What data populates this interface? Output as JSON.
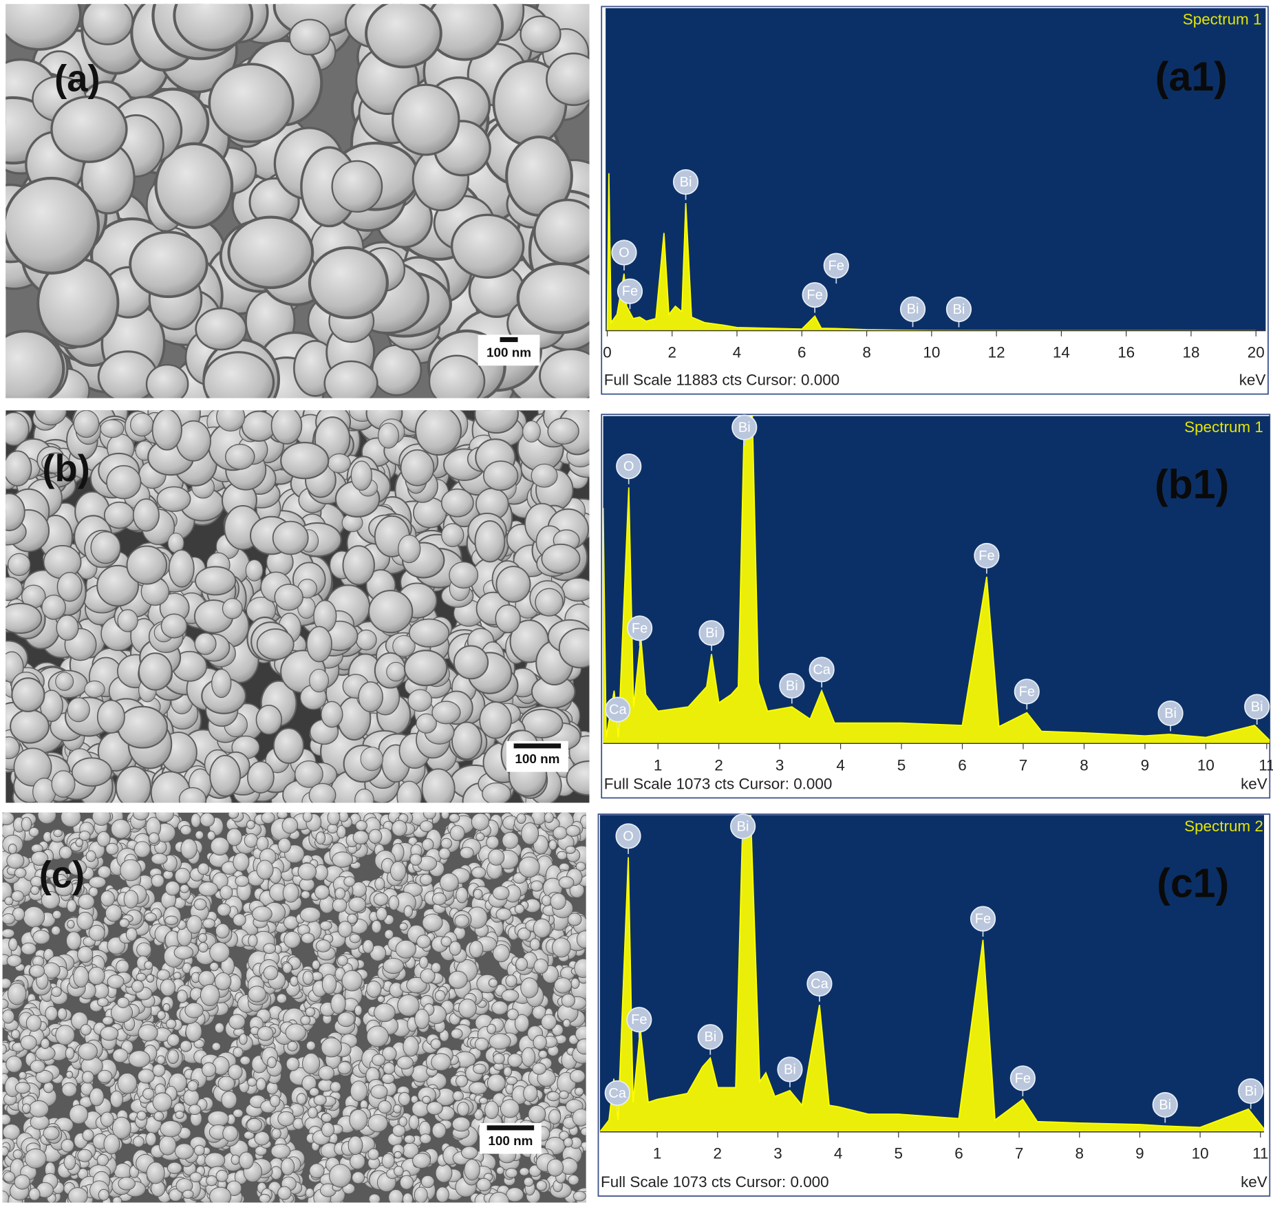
{
  "panels": [
    {
      "label": "(a)",
      "scale_bar": "100 nm"
    },
    {
      "label": "(b)",
      "scale_bar": "100 nm"
    },
    {
      "label": "(c)",
      "scale_bar": "100 nm"
    }
  ],
  "chart_data": [
    {
      "type": "line",
      "title": "Spectrum 1",
      "panel_label": "(a1)",
      "footer": "Full Scale 11883 cts Cursor: 0.000",
      "x_label": "keV",
      "color": "#ffff00",
      "x": [
        0,
        0.05,
        0.12,
        0.3,
        0.52,
        0.6,
        0.8,
        1.0,
        1.2,
        1.5,
        1.75,
        1.9,
        2.1,
        2.3,
        2.42,
        2.6,
        3.0,
        3.6,
        4.0,
        5,
        6,
        6.4,
        6.6,
        7.06,
        8,
        9,
        10,
        20
      ],
      "values": [
        0,
        5800,
        300,
        600,
        2100,
        900,
        450,
        500,
        350,
        450,
        3600,
        600,
        900,
        700,
        4700,
        500,
        300,
        200,
        120,
        90,
        60,
        540,
        90,
        80,
        40,
        20,
        10,
        0
      ],
      "xlim": [
        -0.05,
        20.3
      ],
      "xticks": [
        0,
        2,
        4,
        6,
        8,
        10,
        12,
        14,
        16,
        18,
        20
      ],
      "ylim": [
        0,
        11883
      ],
      "annotations": [
        {
          "text": "Fe",
          "x": 0.7
        },
        {
          "text": "O",
          "x": 0.52
        },
        {
          "text": "Bi",
          "x": 2.42
        },
        {
          "text": "Fe",
          "x": 6.4
        },
        {
          "text": "Fe",
          "x": 7.06
        },
        {
          "text": "Bi",
          "x": 9.42
        },
        {
          "text": "Bi",
          "x": 10.84
        }
      ]
    },
    {
      "type": "line",
      "title": "Spectrum 1",
      "panel_label": "(b1)",
      "footer": "Full Scale 1073 cts Cursor: 0.000",
      "x_label": "keV",
      "color": "#ffff00",
      "x": [
        0.1,
        0.15,
        0.28,
        0.35,
        0.52,
        0.6,
        0.72,
        0.8,
        1.0,
        1.5,
        1.8,
        1.88,
        2.0,
        2.2,
        2.32,
        2.42,
        2.55,
        2.65,
        2.8,
        3.2,
        3.5,
        3.69,
        3.9,
        5,
        6,
        6.4,
        6.6,
        7.06,
        7.3,
        8,
        9,
        9.4,
        10,
        10.8,
        11.05
      ],
      "values": [
        772,
        20,
        173,
        20,
        839,
        120,
        346,
        160,
        106,
        120,
        186,
        293,
        133,
        160,
        186,
        1073,
        1073,
        200,
        106,
        120,
        80,
        173,
        67,
        67,
        59,
        546,
        55,
        101,
        40,
        35,
        25,
        30,
        20,
        59,
        10
      ],
      "xlim": [
        0.1,
        11.05
      ],
      "xticks": [
        1,
        2,
        3,
        4,
        5,
        6,
        7,
        8,
        9,
        10,
        11
      ],
      "ylim": [
        0,
        1073
      ],
      "annotations": [
        {
          "text": "Ca",
          "x": 0.34
        },
        {
          "text": "Fe",
          "x": 0.7
        },
        {
          "text": "O",
          "x": 0.52
        },
        {
          "text": "Bi",
          "x": 1.88
        },
        {
          "text": "Bi",
          "x": 2.42
        },
        {
          "text": "Bi",
          "x": 3.2
        },
        {
          "text": "Ca",
          "x": 3.69
        },
        {
          "text": "Fe",
          "x": 6.4
        },
        {
          "text": "Fe",
          "x": 7.06
        },
        {
          "text": "Bi",
          "x": 9.42
        },
        {
          "text": "Bi",
          "x": 10.84
        }
      ]
    },
    {
      "type": "line",
      "title": "Spectrum 2",
      "panel_label": "(c1)",
      "footer": "Full Scale 1073 cts Cursor: 0.000",
      "x_label": "keV",
      "color": "#ffff00",
      "x": [
        0.05,
        0.2,
        0.28,
        0.35,
        0.52,
        0.6,
        0.72,
        0.85,
        1.0,
        1.5,
        1.75,
        1.88,
        2.0,
        2.3,
        2.42,
        2.55,
        2.7,
        2.8,
        2.95,
        3.2,
        3.4,
        3.69,
        3.85,
        4.0,
        4.5,
        5,
        6,
        6.4,
        6.6,
        7.06,
        7.3,
        8,
        9,
        9.4,
        10,
        10.8,
        11.06
      ],
      "values": [
        0,
        40,
        180,
        40,
        930,
        100,
        350,
        100,
        110,
        130,
        220,
        250,
        150,
        150,
        1073,
        1073,
        170,
        200,
        120,
        140,
        90,
        430,
        90,
        85,
        60,
        60,
        45,
        650,
        40,
        110,
        35,
        30,
        25,
        20,
        15,
        77,
        10
      ],
      "xlim": [
        0.05,
        11.06
      ],
      "xticks": [
        1,
        2,
        3,
        4,
        5,
        6,
        7,
        8,
        9,
        10,
        11
      ],
      "ylim": [
        0,
        1073
      ],
      "annotations": [
        {
          "text": "Ca",
          "x": 0.34
        },
        {
          "text": "O",
          "x": 0.52
        },
        {
          "text": "Fe",
          "x": 0.7
        },
        {
          "text": "Bi",
          "x": 1.88
        },
        {
          "text": "Bi",
          "x": 2.42
        },
        {
          "text": "Bi",
          "x": 3.2
        },
        {
          "text": "Ca",
          "x": 3.69
        },
        {
          "text": "Fe",
          "x": 6.4
        },
        {
          "text": "Fe",
          "x": 7.06
        },
        {
          "text": "Bi",
          "x": 9.42
        },
        {
          "text": "Bi",
          "x": 10.84
        }
      ]
    }
  ]
}
